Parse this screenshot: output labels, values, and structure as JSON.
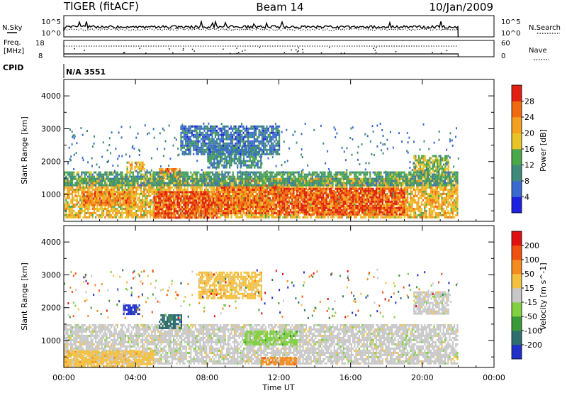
{
  "header": {
    "title": "TIGER (fitACF)",
    "beam": "Beam 14",
    "date": "10/Jan/2009"
  },
  "top_panels": {
    "nsky_label": "N.Sky",
    "nsearch_label": "N.Search",
    "freq_label_1": "Freq.",
    "freq_label_2": "[MHz]",
    "nave_label": "Nave",
    "cpid_label": "CPID",
    "cpid_value": "N/A 3551",
    "noise_left_ticks": [
      "10^5",
      "10^0"
    ],
    "noise_right_ticks": [
      "10^5",
      "10^0"
    ],
    "freq_ticks": [
      "18",
      "8"
    ],
    "nave_ticks": [
      "60",
      "0"
    ]
  },
  "chart_data": [
    {
      "type": "heatmap",
      "name": "Power",
      "xlabel": "",
      "ylabel": "Slant Range [km]",
      "x_ticks": [
        "00:00",
        "04:00",
        "08:00",
        "12:00",
        "16:00",
        "20:00",
        "00:00"
      ],
      "y_ticks": [
        "1000",
        "2000",
        "3000",
        "4000"
      ],
      "xlim_hours": [
        0,
        24
      ],
      "ylim_km": [
        180,
        4500
      ],
      "data_extent_hours": [
        0,
        22
      ],
      "colorbar": {
        "label": "Power [dB]",
        "ticks": [
          "28",
          "24",
          "20",
          "16",
          "12",
          "8",
          "4"
        ],
        "range": [
          0,
          32
        ],
        "colors": [
          "#2020e0",
          "#3a6ad0",
          "#3f8a7a",
          "#4aa84a",
          "#e8c428",
          "#f4a020",
          "#f06a10",
          "#e02010"
        ]
      },
      "regions": [
        {
          "t0": 0.0,
          "t1": 22.0,
          "r0": 300,
          "r1": 1500,
          "level": 20
        },
        {
          "t0": 5.0,
          "t1": 8.5,
          "r0": 300,
          "r1": 1100,
          "level": 28
        },
        {
          "t0": 8.5,
          "t1": 12.0,
          "r0": 400,
          "r1": 1300,
          "level": 26
        },
        {
          "t0": 12.0,
          "t1": 19.0,
          "r0": 400,
          "r1": 1200,
          "level": 28
        },
        {
          "t0": 1.0,
          "t1": 4.0,
          "r0": 700,
          "r1": 1100,
          "level": 24
        },
        {
          "t0": 5.3,
          "t1": 6.5,
          "r0": 1500,
          "r1": 1800,
          "level": 24
        },
        {
          "t0": 3.5,
          "t1": 4.5,
          "r0": 1700,
          "r1": 2000,
          "level": 20
        },
        {
          "t0": 19.5,
          "t1": 21.5,
          "r0": 1500,
          "r1": 2200,
          "level": 16
        },
        {
          "t0": 8.0,
          "t1": 11.0,
          "r0": 1800,
          "r1": 2500,
          "level": 10
        },
        {
          "t0": 6.5,
          "t1": 12.0,
          "r0": 2200,
          "r1": 3100,
          "level": 8
        },
        {
          "t0": 0.0,
          "t1": 22.0,
          "r0": 1300,
          "r1": 1700,
          "level": 12
        }
      ]
    },
    {
      "type": "heatmap",
      "name": "Velocity",
      "xlabel": "Time UT",
      "ylabel": "Slant Range [km]",
      "x_ticks": [
        "00:00",
        "04:00",
        "08:00",
        "12:00",
        "16:00",
        "20:00",
        "00:00"
      ],
      "y_ticks": [
        "1000",
        "2000",
        "3000",
        "4000"
      ],
      "xlim_hours": [
        0,
        24
      ],
      "ylim_km": [
        180,
        4500
      ],
      "data_extent_hours": [
        0,
        22
      ],
      "colorbar": {
        "label": "Velocity [m s^-1]",
        "ticks": [
          "200",
          "100",
          "50",
          "15",
          "-15",
          "-50",
          "-100",
          "-200"
        ],
        "colors": [
          "#2030c8",
          "#2e6e6e",
          "#3a9a3a",
          "#80d040",
          "#c8c8c8",
          "#f4c040",
          "#f48a20",
          "#f05010",
          "#e01010"
        ]
      },
      "regions": [
        {
          "t0": 0.0,
          "t1": 22.0,
          "r0": 300,
          "r1": 1500,
          "class": 4
        },
        {
          "t0": 0.0,
          "t1": 5.0,
          "r0": 200,
          "r1": 700,
          "class": 5
        },
        {
          "t0": 10.0,
          "t1": 13.0,
          "r0": 900,
          "r1": 1300,
          "class": 3
        },
        {
          "t0": 3.3,
          "t1": 4.2,
          "r0": 1800,
          "r1": 2100,
          "class": 0
        },
        {
          "t0": 5.3,
          "t1": 6.6,
          "r0": 1400,
          "r1": 1800,
          "class": 1
        },
        {
          "t0": 11.0,
          "t1": 13.0,
          "r0": 250,
          "r1": 500,
          "class": 6
        },
        {
          "t0": 19.5,
          "t1": 21.5,
          "r0": 1800,
          "r1": 2500,
          "class": 4
        },
        {
          "t0": 7.5,
          "t1": 11.0,
          "r0": 2300,
          "r1": 3100,
          "class": 5
        }
      ]
    }
  ]
}
